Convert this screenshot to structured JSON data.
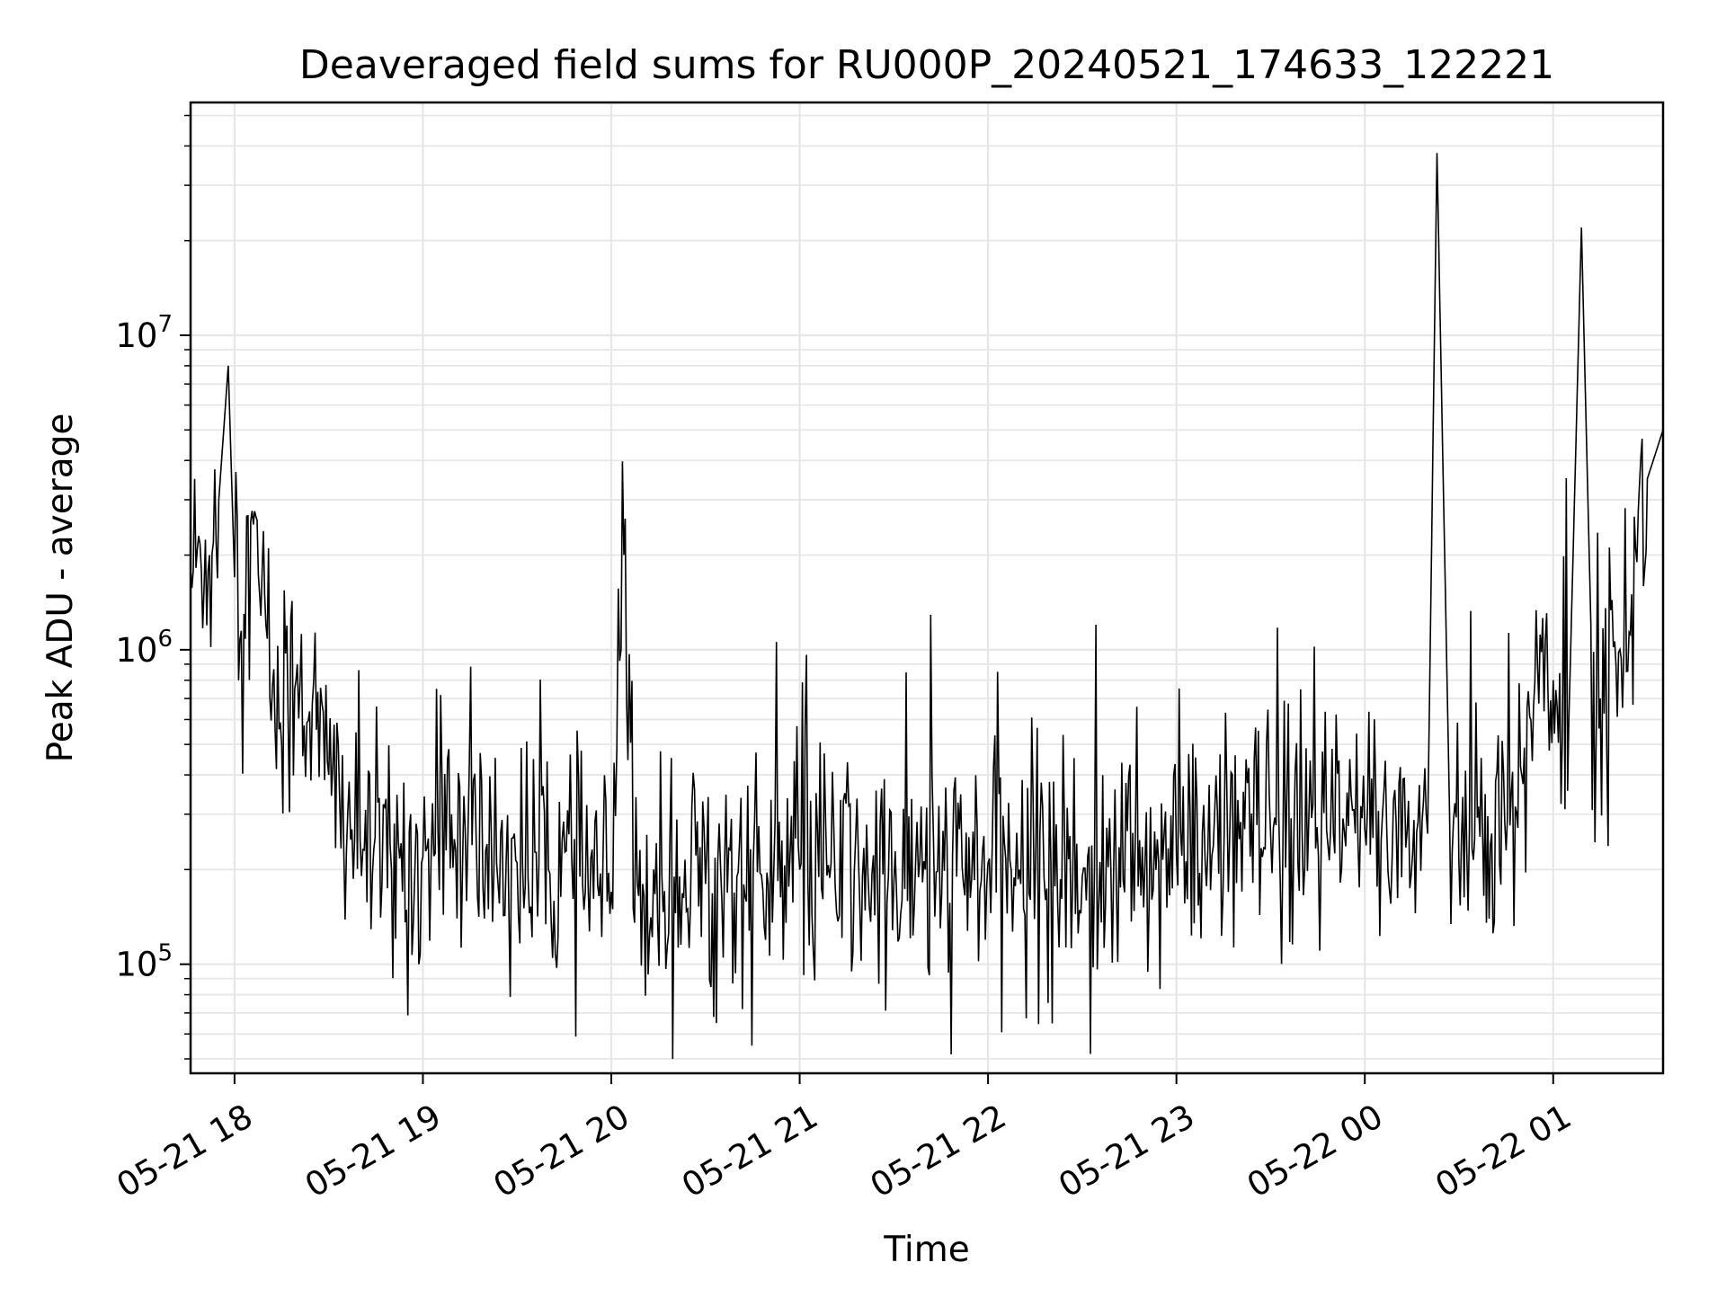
{
  "chart_data": {
    "type": "line",
    "title": "Deaveraged field sums for RU000P_20240521_174633_122221",
    "xlabel": "Time",
    "ylabel": "Peak ADU - average",
    "yscale": "log",
    "ylim": [
      45000,
      55000000
    ],
    "xlim": [
      "2024-05-21 17:46",
      "2024-05-22 01:35"
    ],
    "grid": true,
    "line_color": "#000000",
    "grid_color": "#e6e6e6",
    "x_ticks": [
      {
        "label": "05-21 18",
        "time": "2024-05-21 18:00"
      },
      {
        "label": "05-21 19",
        "time": "2024-05-21 19:00"
      },
      {
        "label": "05-21 20",
        "time": "2024-05-21 20:00"
      },
      {
        "label": "05-21 21",
        "time": "2024-05-21 21:00"
      },
      {
        "label": "05-21 22",
        "time": "2024-05-21 22:00"
      },
      {
        "label": "05-21 23",
        "time": "2024-05-21 23:00"
      },
      {
        "label": "05-22 00",
        "time": "2024-05-22 00:00"
      },
      {
        "label": "05-22 01",
        "time": "2024-05-22 01:00"
      }
    ],
    "y_ticks": [
      {
        "base": "10",
        "exp": "5",
        "value": 100000
      },
      {
        "base": "10",
        "exp": "6",
        "value": 1000000
      },
      {
        "base": "10",
        "exp": "7",
        "value": 10000000
      }
    ],
    "series": [
      {
        "approximate_trace": true,
        "x": [
          "2024-05-21 17:46",
          "2024-05-21 17:52",
          "2024-05-21 17:55",
          "2024-05-21 17:58",
          "2024-05-21 18:00",
          "2024-05-21 18:03",
          "2024-05-21 18:06",
          "2024-05-21 18:08",
          "2024-05-21 18:10",
          "2024-05-21 18:15",
          "2024-05-21 18:20",
          "2024-05-21 18:30",
          "2024-05-21 18:40",
          "2024-05-21 18:50",
          "2024-05-21 19:00",
          "2024-05-21 19:10",
          "2024-05-21 19:20",
          "2024-05-21 19:30",
          "2024-05-21 19:40",
          "2024-05-21 19:50",
          "2024-05-21 20:00",
          "2024-05-21 20:04",
          "2024-05-21 20:07",
          "2024-05-21 20:10",
          "2024-05-21 20:20",
          "2024-05-21 20:30",
          "2024-05-21 20:40",
          "2024-05-21 20:50",
          "2024-05-21 21:00",
          "2024-05-21 21:10",
          "2024-05-21 21:20",
          "2024-05-21 21:30",
          "2024-05-21 21:40",
          "2024-05-21 21:50",
          "2024-05-21 22:00",
          "2024-05-21 22:10",
          "2024-05-21 22:20",
          "2024-05-21 22:30",
          "2024-05-21 22:40",
          "2024-05-21 22:50",
          "2024-05-21 23:00",
          "2024-05-21 23:10",
          "2024-05-21 23:20",
          "2024-05-21 23:30",
          "2024-05-21 23:40",
          "2024-05-21 23:50",
          "2024-05-22 00:00",
          "2024-05-22 00:10",
          "2024-05-22 00:20",
          "2024-05-22 00:23",
          "2024-05-22 00:27",
          "2024-05-22 00:35",
          "2024-05-22 00:40",
          "2024-05-22 00:45",
          "2024-05-22 00:50",
          "2024-05-22 00:55",
          "2024-05-22 01:00",
          "2024-05-22 01:05",
          "2024-05-22 01:09",
          "2024-05-22 01:12",
          "2024-05-22 01:15",
          "2024-05-22 01:20",
          "2024-05-22 01:25",
          "2024-05-22 01:30",
          "2024-05-22 01:35"
        ],
        "y": [
          1800000,
          2000000,
          3000000,
          8000000,
          1700000,
          1300000,
          2500000,
          1500000,
          1200000,
          500000,
          900000,
          400000,
          250000,
          200000,
          220000,
          250000,
          230000,
          210000,
          200000,
          190000,
          170000,
          2000000,
          150000,
          180000,
          190000,
          180000,
          190000,
          180000,
          200000,
          210000,
          190000,
          180000,
          200000,
          190000,
          210000,
          200000,
          210000,
          190000,
          200000,
          210000,
          220000,
          230000,
          250000,
          260000,
          270000,
          260000,
          270000,
          280000,
          260000,
          38000000,
          300000,
          250000,
          240000,
          230000,
          400000,
          900000,
          800000,
          600000,
          22000000,
          1200000,
          700000,
          900000,
          1500000,
          3500000,
          5000000
        ]
      }
    ]
  }
}
